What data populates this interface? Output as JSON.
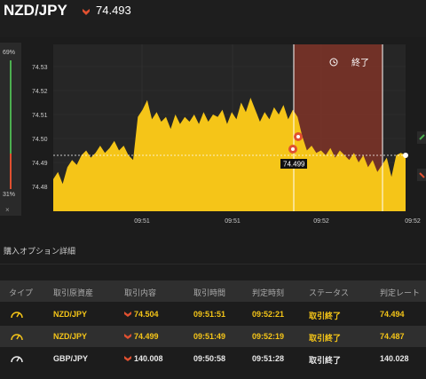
{
  "header": {
    "pair": "NZD/JPY",
    "price": "74.493"
  },
  "gauge": {
    "top_label": "69%",
    "bottom_label": "31%",
    "close": "×"
  },
  "chart": {
    "y_ticks": [
      "74.53",
      "74.52",
      "74.51",
      "74.50",
      "74.49",
      "74.48"
    ],
    "y_tick_values": [
      74.53,
      74.52,
      74.51,
      74.5,
      74.49,
      74.48
    ],
    "x_ticks": [
      "09:51",
      "09:51",
      "09:52",
      "09:52"
    ],
    "end_label": "終了",
    "marker_price": "74.499",
    "series": [
      74.483,
      74.486,
      74.481,
      74.488,
      74.491,
      74.489,
      74.493,
      74.495,
      74.492,
      74.494,
      74.497,
      74.494,
      74.496,
      74.499,
      74.495,
      74.497,
      74.493,
      74.491,
      74.509,
      74.512,
      74.516,
      74.508,
      74.511,
      74.507,
      74.509,
      74.504,
      74.51,
      74.506,
      74.509,
      74.507,
      74.51,
      74.506,
      74.511,
      74.507,
      74.51,
      74.509,
      74.512,
      74.506,
      74.511,
      74.508,
      74.515,
      74.511,
      74.517,
      74.512,
      74.507,
      74.511,
      74.508,
      74.513,
      74.51,
      74.514,
      74.508,
      74.512,
      74.509,
      74.501,
      74.495,
      74.497,
      74.494,
      74.495,
      74.493,
      74.496,
      74.492,
      74.495,
      74.493,
      74.491,
      74.494,
      74.49,
      74.493,
      74.488,
      74.491,
      74.486,
      74.489,
      74.492,
      74.484,
      74.493,
      74.494,
      74.493
    ]
  },
  "section": {
    "title": "購入オプション詳細"
  },
  "table": {
    "headers": [
      "タイプ",
      "取引原資産",
      "取引内容",
      "取引時間",
      "判定時刻",
      "ステータス",
      "判定レート"
    ],
    "rows": [
      {
        "asset": "NZD/JPY",
        "content": "74.504",
        "time": "09:51:51",
        "judge": "09:52:21",
        "status": "取引終了",
        "rate": "74.494"
      },
      {
        "asset": "NZD/JPY",
        "content": "74.499",
        "time": "09:51:49",
        "judge": "09:52:19",
        "status": "取引終了",
        "rate": "74.487"
      },
      {
        "asset": "GBP/JPY",
        "content": "140.008",
        "time": "09:50:58",
        "judge": "09:51:28",
        "status": "取引終了",
        "rate": "140.028"
      }
    ]
  },
  "colors": {
    "accent": "#f5c518",
    "down": "#e05030",
    "up": "#4caf50",
    "zone": "#7a3328"
  }
}
